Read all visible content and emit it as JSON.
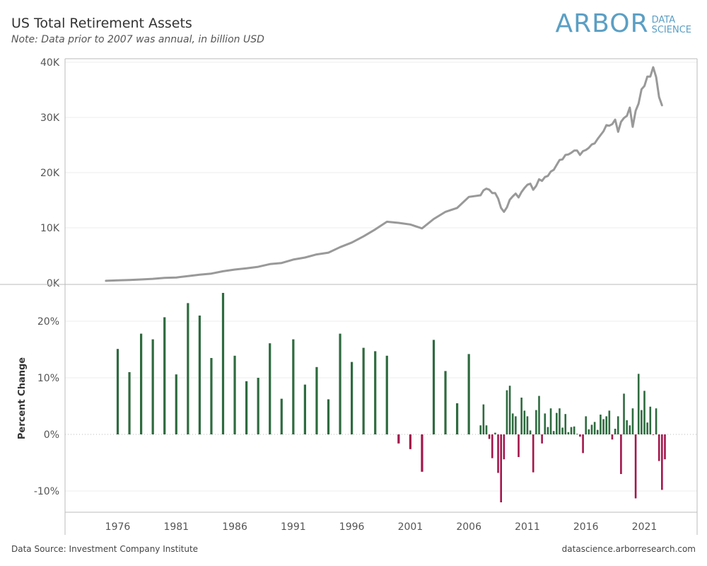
{
  "header": {
    "title": "US Total Retirement Assets",
    "subtitle": "Note: Data prior to 2007 was annual, in billion USD"
  },
  "logo": {
    "main": "ARBOR",
    "line1": "DATA",
    "line2": "SCIENCE"
  },
  "footer": {
    "source": "Data Source: Investment Company Institute",
    "site": "datascience.arborresearch.com"
  },
  "colors": {
    "line": "#999999",
    "positive": "#2e6b3f",
    "negative": "#a3164a",
    "grid": "#eeeeee",
    "axis": "#bbbbbb"
  },
  "chart_data": [
    {
      "type": "line",
      "title": "US Total Retirement Assets",
      "ylabel": "",
      "ylim": [
        0,
        40000
      ],
      "yticks": [
        0,
        10000,
        20000,
        30000,
        40000
      ],
      "ytick_labels": [
        "0K",
        "10K",
        "20K",
        "30K",
        "40K"
      ],
      "series": [
        {
          "values": [
            [
              1975.0,
              400
            ],
            [
              1976.0,
              480
            ],
            [
              1977.0,
              540
            ],
            [
              1978.0,
              640
            ],
            [
              1979.0,
              760
            ],
            [
              1980.0,
              920
            ],
            [
              1981.0,
              1000
            ],
            [
              1982.0,
              1240
            ],
            [
              1983.0,
              1500
            ],
            [
              1984.0,
              1700
            ],
            [
              1985.0,
              2130
            ],
            [
              1986.0,
              2430
            ],
            [
              1987.0,
              2670
            ],
            [
              1988.0,
              2940
            ],
            [
              1989.0,
              3420
            ],
            [
              1990.0,
              3630
            ],
            [
              1991.0,
              4240
            ],
            [
              1992.0,
              4620
            ],
            [
              1993.0,
              5180
            ],
            [
              1994.0,
              5500
            ],
            [
              1995.0,
              6500
            ],
            [
              1996.0,
              7330
            ],
            [
              1997.0,
              8450
            ],
            [
              1998.0,
              9700
            ],
            [
              1999.0,
              11100
            ],
            [
              2000.0,
              10900
            ],
            [
              2001.0,
              10600
            ],
            [
              2002.0,
              9900
            ],
            [
              2003.0,
              11600
            ],
            [
              2004.0,
              12900
            ],
            [
              2005.0,
              13600
            ],
            [
              2006.0,
              15600
            ],
            [
              2007.0,
              15900
            ],
            [
              2007.25,
              16800
            ],
            [
              2007.5,
              17100
            ],
            [
              2007.75,
              16900
            ],
            [
              2008.0,
              16300
            ],
            [
              2008.25,
              16300
            ],
            [
              2008.5,
              15300
            ],
            [
              2008.75,
              13600
            ],
            [
              2009.0,
              12900
            ],
            [
              2009.25,
              13700
            ],
            [
              2009.5,
              15100
            ],
            [
              2009.75,
              15700
            ],
            [
              2010.0,
              16200
            ],
            [
              2010.25,
              15500
            ],
            [
              2010.5,
              16500
            ],
            [
              2010.75,
              17200
            ],
            [
              2011.0,
              17800
            ],
            [
              2011.25,
              18000
            ],
            [
              2011.5,
              16900
            ],
            [
              2011.75,
              17600
            ],
            [
              2012.0,
              18800
            ],
            [
              2012.25,
              18500
            ],
            [
              2012.5,
              19200
            ],
            [
              2012.75,
              19400
            ],
            [
              2013.0,
              20200
            ],
            [
              2013.25,
              20500
            ],
            [
              2013.5,
              21400
            ],
            [
              2013.75,
              22300
            ],
            [
              2014.0,
              22400
            ],
            [
              2014.25,
              23200
            ],
            [
              2014.5,
              23300
            ],
            [
              2014.75,
              23600
            ],
            [
              2015.0,
              24000
            ],
            [
              2015.25,
              24000
            ],
            [
              2015.5,
              23200
            ],
            [
              2015.75,
              23900
            ],
            [
              2016.0,
              24100
            ],
            [
              2016.25,
              24500
            ],
            [
              2016.5,
              25100
            ],
            [
              2016.75,
              25300
            ],
            [
              2017.0,
              26100
            ],
            [
              2017.25,
              26800
            ],
            [
              2017.5,
              27500
            ],
            [
              2017.75,
              28600
            ],
            [
              2018.0,
              28500
            ],
            [
              2018.25,
              28800
            ],
            [
              2018.5,
              29600
            ],
            [
              2018.75,
              27400
            ],
            [
              2019.0,
              29200
            ],
            [
              2019.25,
              29900
            ],
            [
              2019.5,
              30300
            ],
            [
              2019.75,
              31800
            ],
            [
              2020.0,
              28300
            ],
            [
              2020.25,
              31200
            ],
            [
              2020.5,
              32500
            ],
            [
              2020.75,
              35100
            ],
            [
              2021.0,
              35700
            ],
            [
              2021.25,
              37400
            ],
            [
              2021.5,
              37400
            ],
            [
              2021.75,
              39100
            ],
            [
              2022.0,
              37300
            ],
            [
              2022.25,
              33700
            ],
            [
              2022.5,
              32200
            ]
          ]
        }
      ]
    },
    {
      "type": "bar",
      "ylabel": "Percent Change",
      "ylim": [
        -13,
        25
      ],
      "yticks": [
        -10,
        0,
        10,
        20
      ],
      "ytick_labels": [
        "-10%",
        "0%",
        "10%",
        "20%"
      ],
      "xlim": [
        1971.5,
        2025.5
      ],
      "xticks": [
        1976,
        1981,
        1986,
        1991,
        1996,
        2001,
        2006,
        2011,
        2016,
        2021
      ],
      "xtick_labels": [
        "1976",
        "1981",
        "1986",
        "1991",
        "1996",
        "2001",
        "2006",
        "2011",
        "2016",
        "2021"
      ],
      "values": [
        [
          1976,
          15.1
        ],
        [
          1977,
          11.0
        ],
        [
          1978,
          17.8
        ],
        [
          1979,
          16.8
        ],
        [
          1980,
          20.7
        ],
        [
          1981,
          10.6
        ],
        [
          1982,
          23.2
        ],
        [
          1983,
          21.0
        ],
        [
          1984,
          13.5
        ],
        [
          1985,
          25.0
        ],
        [
          1986,
          13.9
        ],
        [
          1987,
          9.4
        ],
        [
          1988,
          10.0
        ],
        [
          1989,
          16.1
        ],
        [
          1990,
          6.3
        ],
        [
          1991,
          16.8
        ],
        [
          1992,
          8.8
        ],
        [
          1993,
          11.9
        ],
        [
          1994,
          6.2
        ],
        [
          1995,
          17.8
        ],
        [
          1996,
          12.8
        ],
        [
          1997,
          15.3
        ],
        [
          1998,
          14.7
        ],
        [
          1999,
          13.9
        ],
        [
          2000,
          -1.6
        ],
        [
          2001,
          -2.6
        ],
        [
          2002,
          -6.6
        ],
        [
          2003,
          16.7
        ],
        [
          2004,
          11.2
        ],
        [
          2005,
          5.5
        ],
        [
          2006,
          14.2
        ],
        [
          2007.0,
          1.6
        ],
        [
          2007.25,
          5.3
        ],
        [
          2007.5,
          1.6
        ],
        [
          2007.75,
          -0.8
        ],
        [
          2008.0,
          -4.2
        ],
        [
          2008.25,
          0.3
        ],
        [
          2008.5,
          -6.8
        ],
        [
          2008.75,
          -12.0
        ],
        [
          2009.0,
          -4.4
        ],
        [
          2009.25,
          7.8
        ],
        [
          2009.5,
          8.6
        ],
        [
          2009.75,
          3.7
        ],
        [
          2010.0,
          3.2
        ],
        [
          2010.25,
          -4.0
        ],
        [
          2010.5,
          6.5
        ],
        [
          2010.75,
          4.2
        ],
        [
          2011.0,
          3.2
        ],
        [
          2011.25,
          0.7
        ],
        [
          2011.5,
          -6.7
        ],
        [
          2011.75,
          4.3
        ],
        [
          2012.0,
          6.8
        ],
        [
          2012.25,
          -1.6
        ],
        [
          2012.5,
          3.7
        ],
        [
          2012.75,
          1.3
        ],
        [
          2013.0,
          4.6
        ],
        [
          2013.25,
          0.6
        ],
        [
          2013.5,
          3.8
        ],
        [
          2013.75,
          4.6
        ],
        [
          2014.0,
          1.2
        ],
        [
          2014.25,
          3.6
        ],
        [
          2014.5,
          0.4
        ],
        [
          2014.75,
          1.3
        ],
        [
          2015.0,
          1.4
        ],
        [
          2015.25,
          0.1
        ],
        [
          2015.5,
          -0.4
        ],
        [
          2015.75,
          -3.3
        ],
        [
          2016.0,
          3.2
        ],
        [
          2016.25,
          0.9
        ],
        [
          2016.5,
          1.7
        ],
        [
          2016.75,
          2.2
        ],
        [
          2017.0,
          0.8
        ],
        [
          2017.25,
          3.5
        ],
        [
          2017.5,
          2.7
        ],
        [
          2017.75,
          3.2
        ],
        [
          2018.0,
          4.2
        ],
        [
          2018.25,
          -0.9
        ],
        [
          2018.5,
          1.0
        ],
        [
          2018.75,
          3.2
        ],
        [
          2019.0,
          -7.0
        ],
        [
          2019.25,
          7.2
        ],
        [
          2019.5,
          2.5
        ],
        [
          2019.75,
          1.6
        ],
        [
          2020.0,
          4.6
        ],
        [
          2020.25,
          -11.3
        ],
        [
          2020.5,
          10.7
        ],
        [
          2020.75,
          4.3
        ],
        [
          2021.0,
          7.7
        ],
        [
          2021.25,
          2.1
        ],
        [
          2021.5,
          4.9
        ],
        [
          2021.75,
          -0.1
        ],
        [
          2022.0,
          4.6
        ],
        [
          2022.25,
          -4.7
        ],
        [
          2022.5,
          -9.8
        ],
        [
          2022.75,
          -4.4
        ]
      ]
    }
  ]
}
